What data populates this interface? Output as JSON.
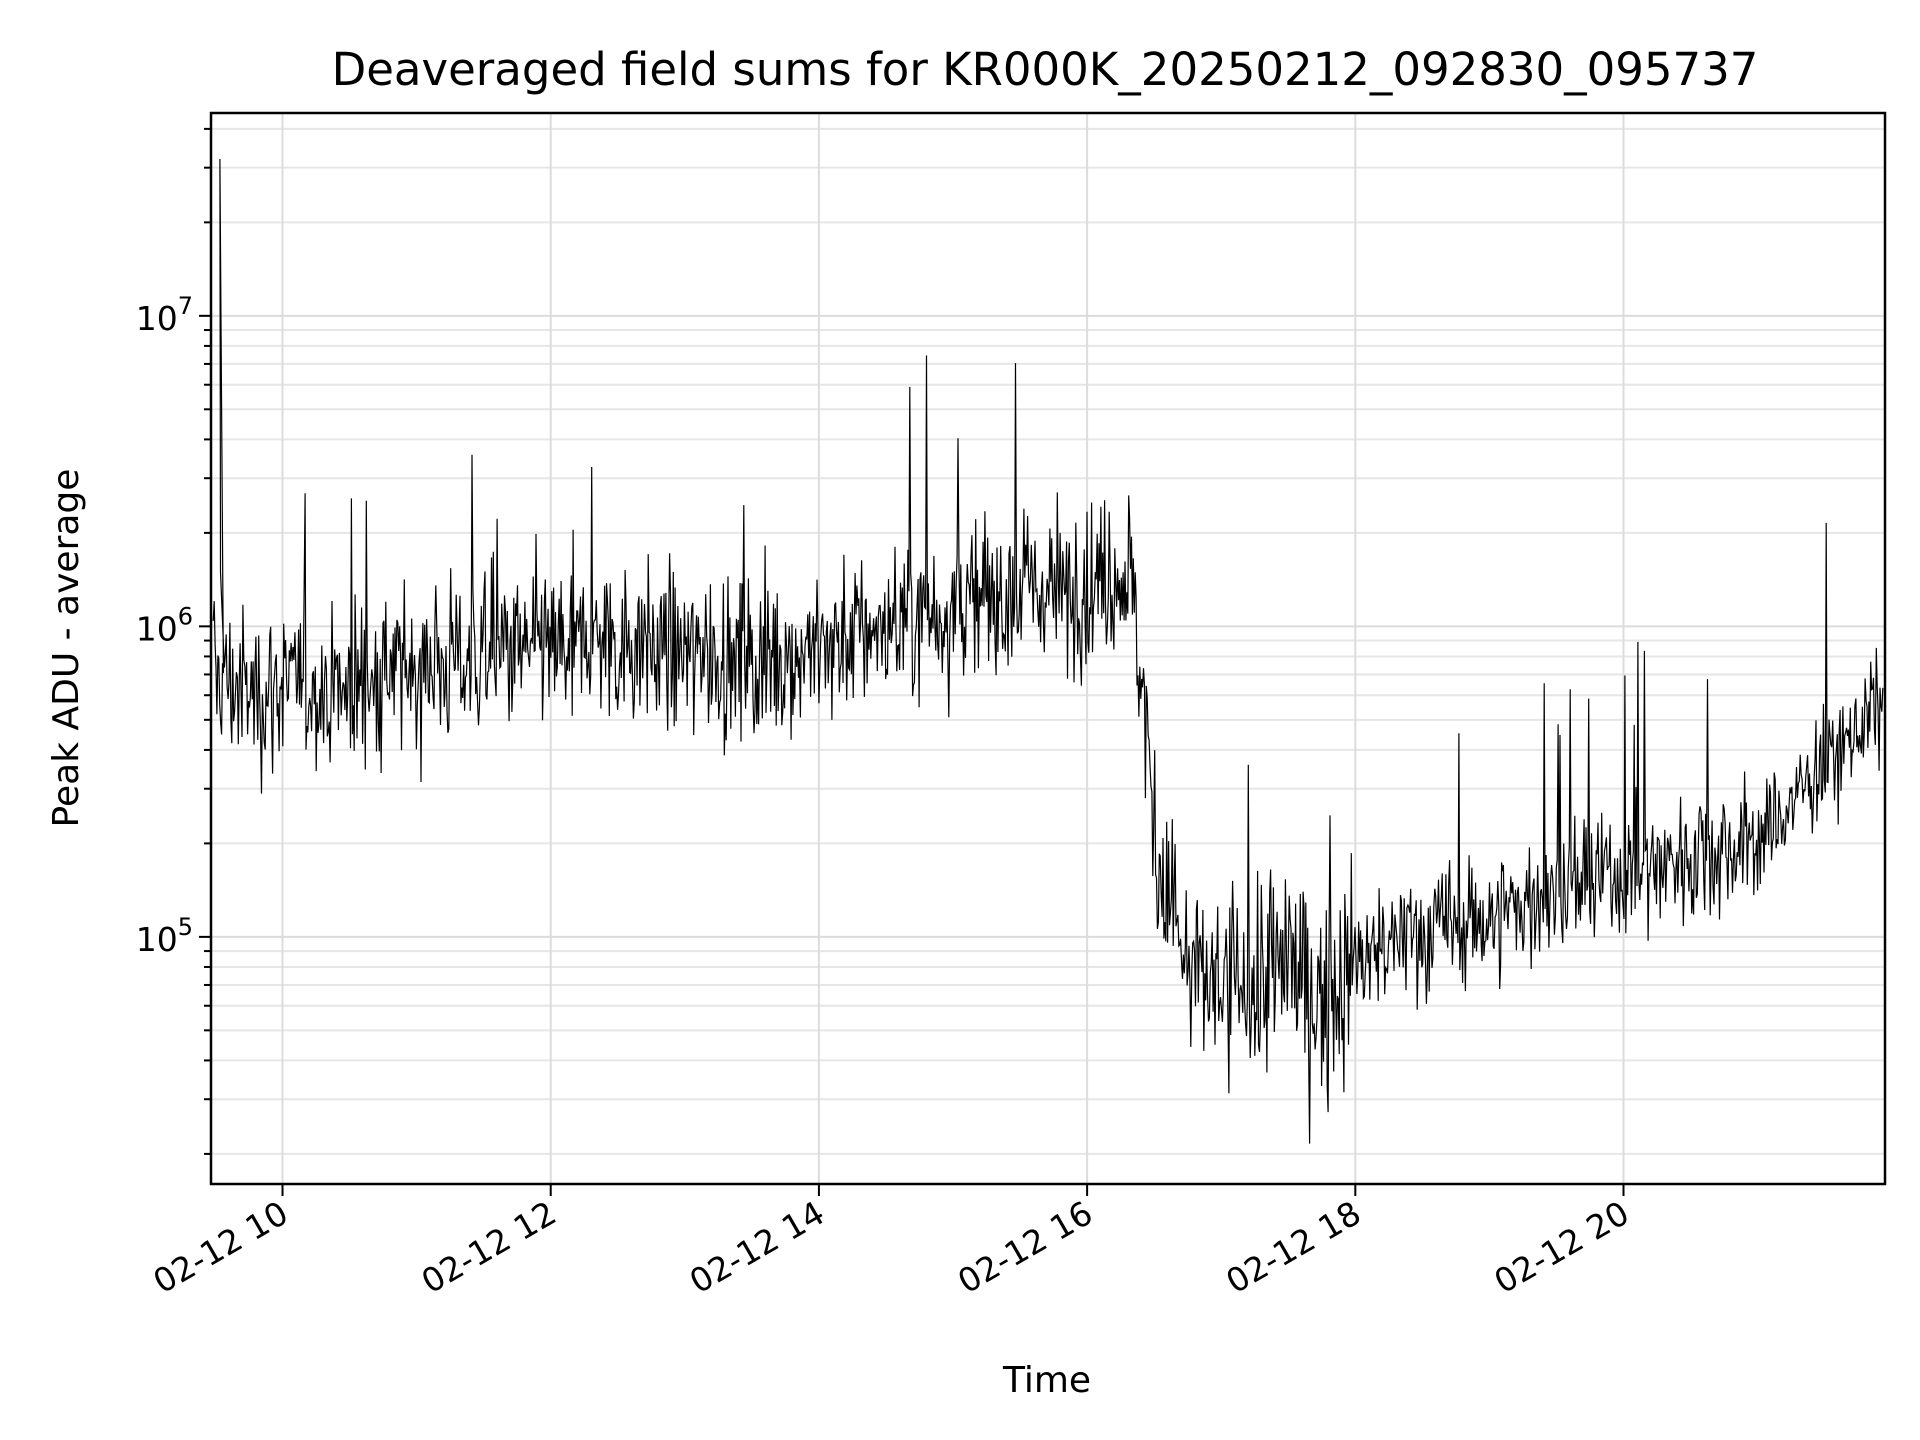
{
  "chart_data": {
    "type": "line",
    "title": "Deaveraged field sums for KR000K_20250212_092830_095737",
    "xlabel": "Time",
    "ylabel": "Peak ADU - average",
    "yscale": "log",
    "grid": true,
    "xlim": [
      "2025-02-12 09:28",
      "2025-02-12 21:57"
    ],
    "ylim": [
      16000,
      45000000
    ],
    "x_ticks": [
      "02-12 10",
      "02-12 12",
      "02-12 14",
      "02-12 16",
      "02-12 18",
      "02-12 20"
    ],
    "y_ticks": [
      {
        "base": "10",
        "exp": "5",
        "value": 100000
      },
      {
        "base": "10",
        "exp": "6",
        "value": 1000000
      },
      {
        "base": "10",
        "exp": "7",
        "value": 10000000
      }
    ],
    "line_color": "#000000",
    "series": [
      {
        "x": [
          "2025-02-12 09:30",
          "2025-02-12 09:45",
          "2025-02-12 10:00",
          "2025-02-12 10:30",
          "2025-02-12 11:00",
          "2025-02-12 11:30",
          "2025-02-12 12:00",
          "2025-02-12 12:30",
          "2025-02-12 13:00",
          "2025-02-12 13:30",
          "2025-02-12 14:00",
          "2025-02-12 14:30",
          "2025-02-12 15:00",
          "2025-02-12 15:30",
          "2025-02-12 16:00",
          "2025-02-12 16:20",
          "2025-02-12 16:30",
          "2025-02-12 16:45",
          "2025-02-12 17:00",
          "2025-02-12 17:15",
          "2025-02-12 17:30",
          "2025-02-12 17:45",
          "2025-02-12 18:00",
          "2025-02-12 18:30",
          "2025-02-12 19:00",
          "2025-02-12 19:30",
          "2025-02-12 20:00",
          "2025-02-12 20:30",
          "2025-02-12 21:00",
          "2025-02-12 21:30",
          "2025-02-12 21:55"
        ],
        "y": [
          700000,
          600000,
          650000,
          620000,
          750000,
          800000,
          850000,
          900000,
          820000,
          780000,
          850000,
          1000000,
          1150000,
          1300000,
          1350000,
          1500000,
          220000,
          75000,
          68000,
          70000,
          85000,
          60000,
          82000,
          105000,
          115000,
          140000,
          160000,
          185000,
          200000,
          360000,
          550000
        ]
      }
    ],
    "annotations": [
      {
        "x": "2025-02-12 09:32",
        "y": 32000000,
        "text": ""
      }
    ]
  }
}
